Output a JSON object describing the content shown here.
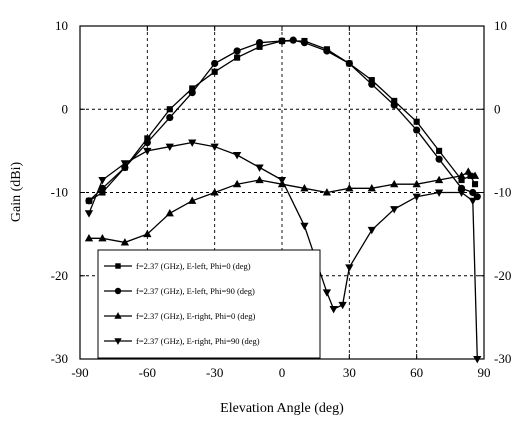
{
  "chart_data": {
    "type": "line",
    "xlabel": "Elevation Angle (deg)",
    "ylabel": "Gain (dBi)",
    "xlim": [
      -90,
      90
    ],
    "ylim": [
      -30,
      10
    ],
    "xticks": [
      -90,
      -60,
      -30,
      0,
      30,
      60,
      90
    ],
    "yticks": [
      -30,
      -20,
      -10,
      0,
      10
    ],
    "x_tick_labels": [
      "-90",
      "-60",
      "-30",
      "0",
      "30",
      "60",
      "90"
    ],
    "y_tick_labels": [
      "-30",
      "-20",
      "-10",
      "0",
      "10"
    ],
    "grid": true,
    "grid_style": "dashed",
    "right_axis": true,
    "legend_position": "bottom-left",
    "series": [
      {
        "name": "f=2.37 (GHz), E-left, Phi=0 (deg)",
        "marker": "square",
        "x": [
          -86,
          -80,
          -70,
          -60,
          -50,
          -40,
          -30,
          -20,
          -10,
          0,
          10,
          20,
          30,
          40,
          50,
          60,
          70,
          80,
          84,
          86
        ],
        "y": [
          -11,
          -10,
          -7,
          -3.5,
          0,
          2.5,
          4.5,
          6.2,
          7.5,
          8.2,
          8.2,
          7.2,
          5.5,
          3.5,
          1,
          -1.5,
          -5,
          -8.5,
          -8,
          -9
        ]
      },
      {
        "name": "f=2.37 (GHz), E-left, Phi=90 (deg)",
        "marker": "circle",
        "x": [
          -86,
          -80,
          -70,
          -60,
          -50,
          -40,
          -30,
          -20,
          -10,
          0,
          5,
          10,
          20,
          30,
          40,
          50,
          60,
          70,
          80,
          85,
          87
        ],
        "y": [
          -11,
          -9.5,
          -7,
          -4,
          -1,
          2,
          5.5,
          7,
          8,
          8.2,
          8.3,
          8,
          7,
          5.5,
          3,
          0.5,
          -2.5,
          -6,
          -9.5,
          -10,
          -10.5
        ]
      },
      {
        "name": "f=2.37 (GHz), E-right, Phi=0  (deg)",
        "marker": "triangle-up",
        "x": [
          -86,
          -80,
          -70,
          -60,
          -50,
          -40,
          -30,
          -20,
          -10,
          0,
          10,
          20,
          30,
          40,
          50,
          60,
          70,
          80,
          83,
          86
        ],
        "y": [
          -15.5,
          -15.5,
          -16,
          -15,
          -12.5,
          -11,
          -10,
          -9,
          -8.5,
          -9,
          -9.5,
          -10,
          -9.5,
          -9.5,
          -9,
          -9,
          -8.5,
          -8,
          -7.5,
          -8
        ]
      },
      {
        "name": "f=2.37 (GHz), E-right, Phi=90 (deg)",
        "marker": "triangle-down",
        "x": [
          -86,
          -80,
          -70,
          -60,
          -50,
          -40,
          -30,
          -20,
          -10,
          0,
          10,
          20,
          23,
          27,
          30,
          40,
          50,
          60,
          70,
          80,
          85,
          87
        ],
        "y": [
          -12.5,
          -8.5,
          -6.5,
          -5,
          -4.5,
          -4,
          -4.5,
          -5.5,
          -7,
          -8.5,
          -14,
          -22,
          -24,
          -23.5,
          -19,
          -14.5,
          -12,
          -10.5,
          -10,
          -10,
          -11,
          -30
        ]
      }
    ]
  }
}
